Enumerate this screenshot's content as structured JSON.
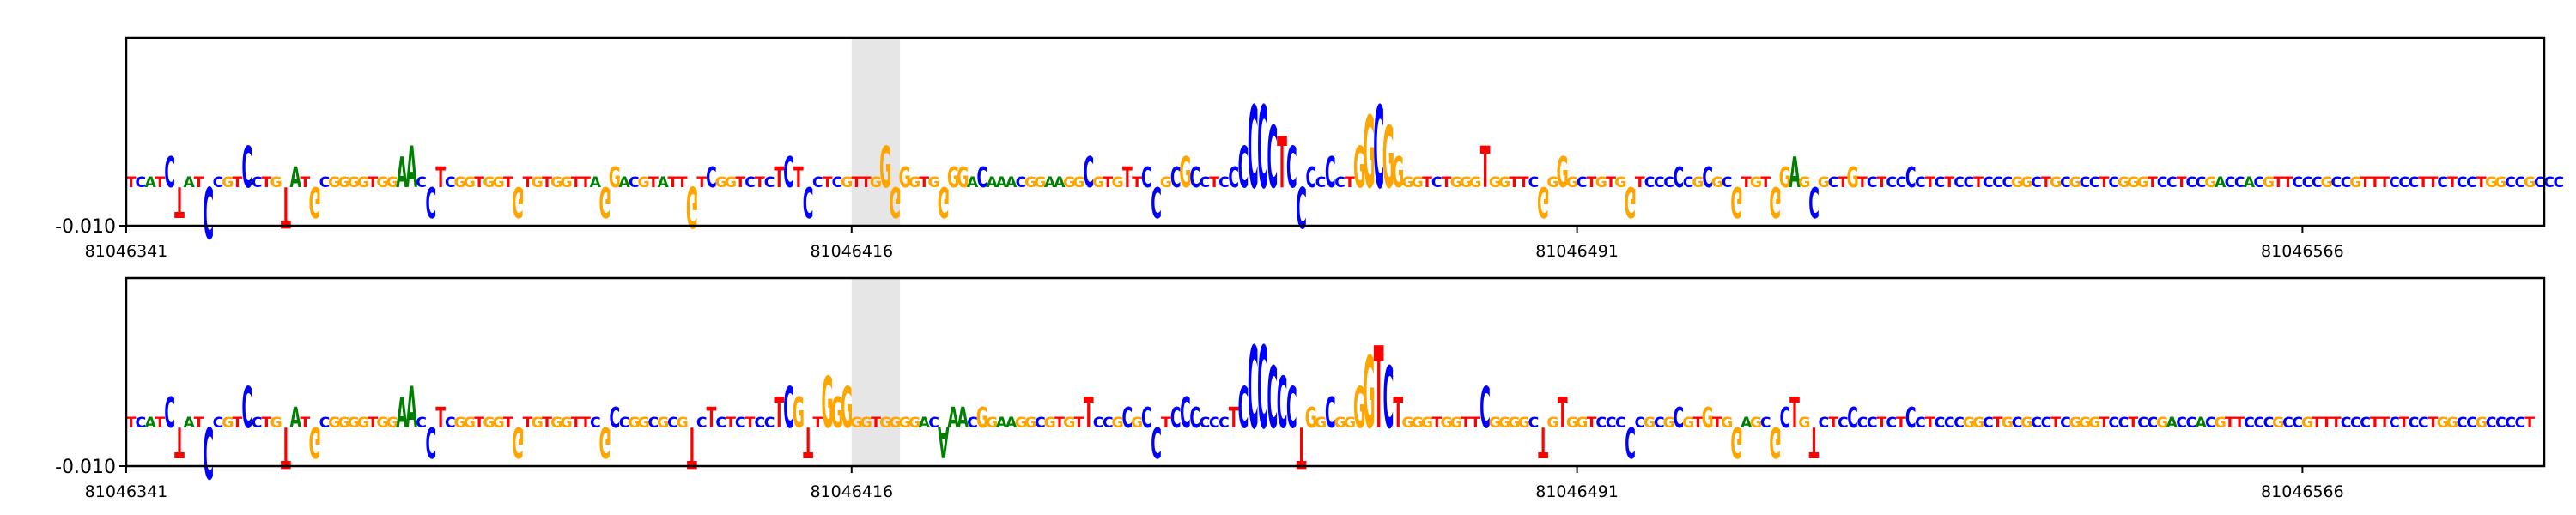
{
  "chart_data": [
    {
      "type": "sequence-logo",
      "title": "",
      "xlabel": "",
      "ylabel": "",
      "x_range": [
        81046341,
        81046591
      ],
      "x_ticks": [
        "81046341",
        "81046416",
        "81046491",
        "81046566"
      ],
      "y_tick_labels": [
        "-0.010"
      ],
      "highlight_range": [
        81046416,
        81046421
      ],
      "grid": false,
      "sequence": "TCATCTATCCGTCCTGTATGCGGGGTGGAACCTCGGTGGTGTGTGGTTAGGACGTATTGTCGGTCTCTCTCCTCGTTGGGGGTGGGGACAAACGGAAGGCGTGTTCCGCGCCTCCCCCCTCCCCCCTGGCGGGGTCTGGGTGGTTCGGGGCTGTGGTCCCCCGCGCGTGTGGAGCGCTGTCTCCCCTCTCCTCCCGGCTGCGCCTCGGGTCCTCCGACCACGTTCCCGCCGTTTCCCTTCTCCTGGCCGCCCCT",
      "heights": [
        0.1,
        0.1,
        0.1,
        0.1,
        0.3,
        -0.3,
        0.1,
        0.1,
        -0.5,
        0.1,
        0.1,
        0.1,
        0.4,
        0.1,
        0.1,
        0.1,
        -0.4,
        0.2,
        0.1,
        -0.3,
        0.1,
        0.1,
        0.1,
        0.1,
        0.1,
        0.1,
        0.1,
        0.1,
        0.3,
        0.4,
        0.1,
        -0.3,
        0.2,
        0.1,
        0.1,
        0.1,
        0.1,
        0.1,
        0.1,
        0.1,
        -0.3,
        0.1,
        0.1,
        0.1,
        0.1,
        0.1,
        0.1,
        0.1,
        0.1,
        -0.3,
        0.2,
        0.1,
        0.1,
        0.1,
        0.1,
        0.1,
        0.1,
        0.1,
        -0.4,
        0.1,
        0.2,
        0.1,
        0.1,
        0.1,
        0.1,
        0.1,
        0.1,
        0.2,
        0.3,
        0.2,
        -0.3,
        0.1,
        0.1,
        0.1,
        0.1,
        0.1,
        0.1,
        0.1,
        0.4,
        -0.3,
        0.2,
        0.1,
        0.1,
        0.1,
        -0.3,
        0.2,
        0.2,
        0.1,
        0.2,
        0.1,
        0.1,
        0.1,
        0.1,
        0.1,
        0.1,
        0.1,
        0.1,
        0.1,
        0.1,
        0.3,
        0.1,
        0.1,
        0.1,
        0.2,
        0.1,
        0.2,
        -0.3,
        0.1,
        0.2,
        0.3,
        0.2,
        0.1,
        0.1,
        0.1,
        0.2,
        0.4,
        0.8,
        0.8,
        0.6,
        0.5,
        0.4,
        -0.4,
        0.2,
        0.1,
        0.3,
        0.1,
        0.1,
        0.4,
        0.7,
        0.8,
        0.6,
        0.3,
        0.1,
        0.1,
        0.1,
        0.1,
        0.1,
        0.1,
        0.1,
        0.1,
        0.4,
        0.1,
        0.1,
        0.1,
        0.1,
        0.1,
        -0.3,
        0.1,
        0.3,
        0.1,
        0.1,
        0.1,
        0.1,
        0.1,
        0.1,
        -0.3,
        0.1,
        0.1,
        0.1,
        0.1,
        0.2,
        0.1,
        0.1,
        0.2,
        0.1,
        0.1,
        -0.3,
        0.1,
        0.1,
        0.1,
        -0.3,
        0.2,
        0.3,
        0.1,
        -0.3,
        0.1,
        0.1,
        0.1,
        0.2,
        0.1,
        0.1,
        0.1,
        0.1,
        0.1,
        0.2,
        0.1,
        0.1,
        0.1,
        0.1,
        0.1,
        0.1,
        0.1,
        0.1,
        0.1,
        0.1,
        0.1,
        0.1,
        0.1,
        0.1,
        0.1,
        0.1,
        0.1,
        0.1,
        0.1,
        0.1,
        0.1,
        0.1,
        0.1,
        0.1,
        0.1,
        0.1,
        0.1,
        0.1,
        0.1,
        0.1,
        0.1,
        0.1,
        0.1,
        0.1,
        0.1,
        0.1,
        0.1,
        0.1,
        0.1,
        0.1,
        0.1,
        0.1,
        0.1,
        0.1,
        0.1,
        0.1,
        0.1,
        0.1,
        0.1,
        0.1,
        0.1,
        0.1,
        0.1,
        0.1,
        0.1,
        0.1,
        0.1,
        0.1,
        0.1,
        0.1,
        0.1,
        0.1,
        0.1,
        0.1,
        0.1,
        0.1,
        0.1
      ]
    },
    {
      "type": "sequence-logo",
      "title": "",
      "xlabel": "",
      "ylabel": "",
      "x_range": [
        81046341,
        81046591
      ],
      "x_ticks": [
        "81046341",
        "81046416",
        "81046491",
        "81046566"
      ],
      "y_tick_labels": [
        "-0.010"
      ],
      "highlight_range": [
        81046416,
        81046421
      ],
      "grid": false,
      "sequence": "TCATCTATCCGTCCTGTATGCGGGGTGGAACCTCGGTGGTGTGTGGTTCGCCGGCGCGTCTCTCTCCTCGTTGGGGGTGGGGACAAACGGAAGGCGTGTTCCGCGCCTCCCCCCTCCCCCCTGGCGGGGTCTGGGTGGTTCGGGGCTGTGGTCCCCCGCGCGTGTGGAGCGCTGTCTCCCCTCTCCTCCCGGCTGCGCCTCGGGTCCTCCGACCACGTTCCCGCCGTTTCCCTTCTCCTGGCCGCCCCT",
      "heights": [
        0.1,
        0.1,
        0.1,
        0.1,
        0.3,
        -0.3,
        0.1,
        0.1,
        -0.5,
        0.1,
        0.1,
        0.1,
        0.4,
        0.1,
        0.1,
        0.1,
        -0.4,
        0.2,
        0.1,
        -0.3,
        0.1,
        0.1,
        0.1,
        0.1,
        0.1,
        0.1,
        0.1,
        0.1,
        0.3,
        0.4,
        0.1,
        -0.3,
        0.2,
        0.1,
        0.1,
        0.1,
        0.1,
        0.1,
        0.1,
        0.1,
        -0.3,
        0.1,
        0.1,
        0.1,
        0.1,
        0.1,
        0.1,
        0.1,
        0.1,
        -0.3,
        0.2,
        0.1,
        0.1,
        0.1,
        0.1,
        0.1,
        0.1,
        0.1,
        -0.4,
        0.1,
        0.2,
        0.1,
        0.1,
        0.1,
        0.1,
        0.1,
        0.1,
        0.3,
        0.4,
        0.3,
        -0.3,
        0.1,
        0.5,
        0.3,
        0.4,
        0.1,
        0.1,
        0.1,
        0.1,
        0.1,
        0.1,
        0.1,
        0.1,
        0.1,
        -0.3,
        0.2,
        0.2,
        0.1,
        0.2,
        0.1,
        0.1,
        0.1,
        0.1,
        0.1,
        0.1,
        0.1,
        0.1,
        0.1,
        0.1,
        0.3,
        0.1,
        0.1,
        0.1,
        0.2,
        0.1,
        0.2,
        -0.3,
        0.1,
        0.2,
        0.3,
        0.2,
        0.1,
        0.1,
        0.1,
        0.2,
        0.4,
        0.8,
        0.8,
        0.6,
        0.5,
        0.4,
        -0.4,
        0.2,
        0.1,
        0.3,
        0.1,
        0.1,
        0.4,
        0.7,
        0.8,
        0.6,
        0.3,
        0.1,
        0.1,
        0.1,
        0.1,
        0.1,
        0.1,
        0.1,
        0.1,
        0.4,
        0.1,
        0.1,
        0.1,
        0.1,
        0.1,
        -0.3,
        0.1,
        0.3,
        0.1,
        0.1,
        0.1,
        0.1,
        0.1,
        0.1,
        -0.3,
        0.1,
        0.1,
        0.1,
        0.1,
        0.2,
        0.1,
        0.1,
        0.2,
        0.1,
        0.1,
        -0.3,
        0.1,
        0.1,
        0.1,
        -0.3,
        0.2,
        0.3,
        0.1,
        -0.3,
        0.1,
        0.1,
        0.1,
        0.2,
        0.1,
        0.1,
        0.1,
        0.1,
        0.1,
        0.2,
        0.1,
        0.1,
        0.1,
        0.1,
        0.1,
        0.1,
        0.1,
        0.1,
        0.1,
        0.1,
        0.1,
        0.1,
        0.1,
        0.1,
        0.1,
        0.1,
        0.1,
        0.1,
        0.1,
        0.1,
        0.1,
        0.1,
        0.1,
        0.1,
        0.1,
        0.1,
        0.1,
        0.1,
        0.1,
        0.1,
        0.1,
        0.1,
        0.1,
        0.1,
        0.1,
        0.1,
        0.1,
        0.1,
        0.1,
        0.1,
        0.1,
        0.1,
        0.1,
        0.1,
        0.1,
        0.1,
        0.1,
        0.1,
        0.1,
        0.1,
        0.1,
        0.1,
        0.1,
        0.1,
        0.1,
        0.1,
        0.1,
        0.1,
        0.1,
        0.1,
        0.1,
        0.1,
        0.1,
        0.1,
        0.1,
        0.1
      ]
    }
  ],
  "colors": {
    "A": "#008000",
    "C": "#0000ff",
    "G": "#ffa500",
    "T": "#ff0000",
    "highlight": "#e6e6e6",
    "axis": "#000000"
  }
}
